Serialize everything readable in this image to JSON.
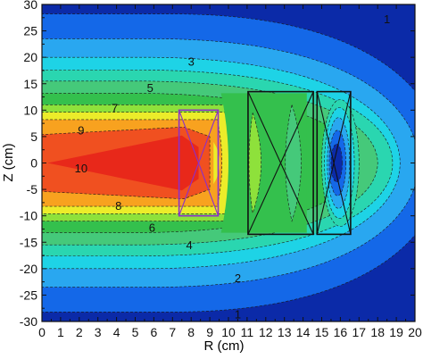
{
  "chart_data": {
    "type": "heatmap",
    "subtype": "filled-contour",
    "xlabel": "R (cm)",
    "ylabel": "Z (cm)",
    "xlim": [
      0,
      20
    ],
    "ylim": [
      -30,
      30
    ],
    "x_ticks": [
      "0",
      "1",
      "2",
      "3",
      "4",
      "5",
      "6",
      "7",
      "8",
      "9",
      "10",
      "11",
      "12",
      "13",
      "14",
      "15",
      "16",
      "17",
      "18",
      "19",
      "20"
    ],
    "y_ticks": [
      "30",
      "25",
      "20",
      "15",
      "10",
      "5",
      "0",
      "-5",
      "-10",
      "-15",
      "-20",
      "-25",
      "-30"
    ],
    "contour_labels": [
      {
        "text": "1",
        "x": 18.5,
        "y": 27.0
      },
      {
        "text": "3",
        "x": 8.0,
        "y": 19.0
      },
      {
        "text": "5",
        "x": 5.8,
        "y": 14.0
      },
      {
        "text": "7",
        "x": 3.9,
        "y": 10.2
      },
      {
        "text": "9",
        "x": 2.1,
        "y": 6.0
      },
      {
        "text": "10",
        "x": 2.1,
        "y": -1.2
      },
      {
        "text": "8",
        "x": 4.1,
        "y": -8.3
      },
      {
        "text": "6",
        "x": 5.9,
        "y": -12.4
      },
      {
        "text": "4",
        "x": 7.9,
        "y": -15.7
      },
      {
        "text": "2",
        "x": 10.5,
        "y": -22.0
      },
      {
        "text": "1",
        "x": 10.5,
        "y": -28.8
      }
    ],
    "level_colors": {
      "0": "#0b2aa8",
      "1": "#1468e8",
      "2": "#29a7f0",
      "3": "#1ed3e6",
      "4": "#2ad6b0",
      "5": "#45c97a",
      "6": "#34c04d",
      "7": "#8ee13b",
      "8": "#ecec2a",
      "9": "#f8a21f",
      "10": "#f05020",
      "11": "#e8281a"
    },
    "boxes": [
      {
        "r0": 7.35,
        "r1": 9.45,
        "z0": -10.0,
        "z1": 10.0,
        "color": "#8b2fc9"
      },
      {
        "r0": 11.05,
        "r1": 14.55,
        "z0": -13.5,
        "z1": 13.5,
        "color": "#111111"
      },
      {
        "r0": 14.75,
        "r1": 16.55,
        "z0": -13.5,
        "z1": 13.5,
        "color": "#111111"
      }
    ]
  }
}
